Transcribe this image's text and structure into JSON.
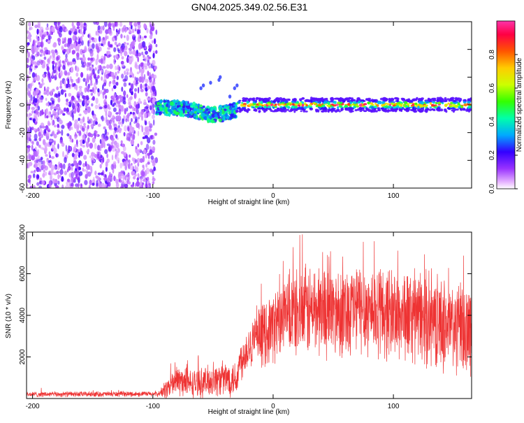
{
  "figure": {
    "title": "GN04.2025.349.02.56.E31"
  },
  "chart_data": [
    {
      "type": "heatmap",
      "xlabel": "Height of straight line (km)",
      "ylabel": "Frequency (Hz)",
      "xlim": [
        -205,
        165
      ],
      "ylim": [
        -60,
        60
      ],
      "x_ticks": [
        -200,
        -100,
        0,
        100
      ],
      "y_ticks": [
        -60,
        -40,
        -20,
        0,
        20,
        40,
        60
      ],
      "colorbar": {
        "label": "Normalized spectral amplitude",
        "range": [
          0,
          1
        ],
        "ticks": [
          0.0,
          0.2,
          0.4,
          0.6,
          0.8
        ],
        "tick_labels": [
          "0.0",
          "0.2",
          "0.4",
          "0.6",
          "0.8"
        ]
      },
      "regions": [
        {
          "name": "broadband noise",
          "x": [
            -205,
            -97
          ],
          "freq": [
            -60,
            60
          ],
          "amplitude": [
            0.05,
            0.2
          ]
        },
        {
          "name": "onset band",
          "x": [
            -97,
            -30
          ],
          "freq": [
            -10,
            4
          ],
          "amplitude": [
            0.2,
            0.5
          ]
        },
        {
          "name": "narrow carrier",
          "x": [
            -30,
            165
          ],
          "freq": [
            -3,
            3
          ],
          "amplitude": [
            0.3,
            0.95
          ]
        }
      ]
    },
    {
      "type": "line",
      "xlabel": "Height of straight line (km)",
      "ylabel": "SNR (10 * v/v)",
      "xlim": [
        -205,
        165
      ],
      "ylim": [
        0,
        8000
      ],
      "x_ticks": [
        -200,
        -100,
        0,
        100
      ],
      "y_ticks": [
        2000,
        4000,
        6000,
        8000
      ],
      "series": [
        {
          "name": "SNR",
          "color": "#ee3333",
          "envelope_x": [
            -205,
            -95,
            -90,
            -80,
            -70,
            -60,
            -50,
            -40,
            -30,
            -28,
            -20,
            -10,
            0,
            10,
            20,
            30,
            40,
            50,
            60,
            70,
            80,
            90,
            100,
            110,
            120,
            130,
            140,
            150,
            160,
            165
          ],
          "envelope_mean": [
            200,
            220,
            400,
            900,
            700,
            750,
            900,
            950,
            1000,
            1700,
            2600,
            3000,
            3500,
            3900,
            4100,
            4200,
            4300,
            4200,
            4300,
            4400,
            4300,
            4200,
            4100,
            4000,
            3900,
            3800,
            3600,
            3400,
            3300,
            3300
          ],
          "envelope_spread": [
            150,
            150,
            500,
            900,
            800,
            800,
            900,
            1000,
            1000,
            1100,
            1300,
            1700,
            2000,
            2200,
            2400,
            2600,
            2600,
            2600,
            2600,
            2600,
            2600,
            2600,
            2600,
            2600,
            2600,
            2600,
            2600,
            2600,
            2600,
            2600
          ]
        }
      ]
    }
  ]
}
